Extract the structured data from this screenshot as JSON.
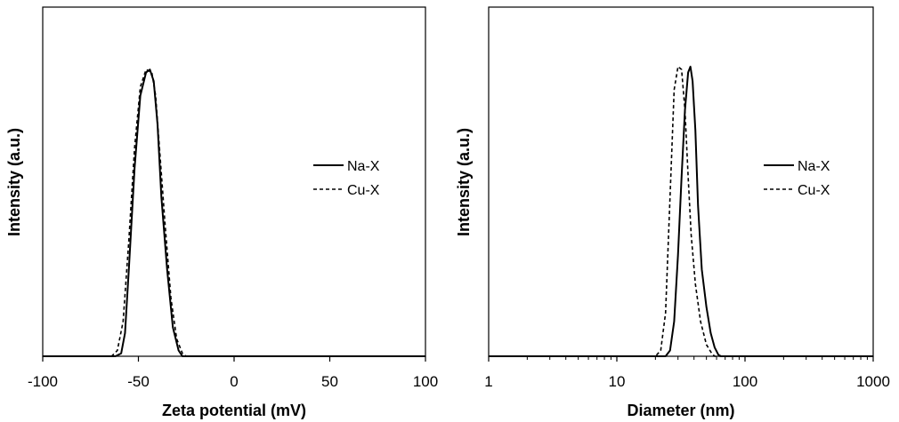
{
  "chart_data": [
    {
      "type": "line",
      "xlabel": "Zeta potential (mV)",
      "ylabel": "Intensity (a.u.)",
      "xlim": [
        -100,
        100
      ],
      "xscale": "linear",
      "xticks": [
        -100,
        -50,
        0,
        50,
        100
      ],
      "xtick_labels": [
        "-100",
        "-50",
        "0",
        "50",
        "100"
      ],
      "yticks_shown": false,
      "grid": false,
      "legend_position": "right",
      "series": [
        {
          "name": "Na-X",
          "style": "solid",
          "color": "#000000",
          "points": [
            [
              -100,
              0
            ],
            [
              -62,
              0
            ],
            [
              -59,
              0.01
            ],
            [
              -57,
              0.08
            ],
            [
              -55,
              0.3
            ],
            [
              -52,
              0.65
            ],
            [
              -49,
              0.9
            ],
            [
              -46,
              0.98
            ],
            [
              -44,
              0.99
            ],
            [
              -42,
              0.95
            ],
            [
              -40,
              0.8
            ],
            [
              -38,
              0.55
            ],
            [
              -35,
              0.3
            ],
            [
              -32,
              0.1
            ],
            [
              -29,
              0.02
            ],
            [
              -27,
              0
            ],
            [
              100,
              0
            ]
          ]
        },
        {
          "name": "Cu-X",
          "style": "dashed",
          "color": "#000000",
          "points": [
            [
              -100,
              0
            ],
            [
              -64,
              0
            ],
            [
              -61,
              0.02
            ],
            [
              -58,
              0.12
            ],
            [
              -55,
              0.4
            ],
            [
              -52,
              0.72
            ],
            [
              -49,
              0.93
            ],
            [
              -46,
              0.99
            ],
            [
              -43,
              0.98
            ],
            [
              -41,
              0.9
            ],
            [
              -39,
              0.72
            ],
            [
              -36,
              0.45
            ],
            [
              -33,
              0.2
            ],
            [
              -30,
              0.06
            ],
            [
              -27,
              0.01
            ],
            [
              -25,
              0
            ],
            [
              100,
              0
            ]
          ]
        }
      ]
    },
    {
      "type": "line",
      "xlabel": "Diameter (nm)",
      "ylabel": "Intensity (a.u.)",
      "xlim": [
        1,
        1000
      ],
      "xscale": "log",
      "xticks": [
        1,
        10,
        100,
        1000
      ],
      "xtick_labels": [
        "1",
        "10",
        "100",
        "1000"
      ],
      "yticks_shown": false,
      "grid": false,
      "legend_position": "right",
      "series": [
        {
          "name": "Na-X",
          "style": "solid",
          "color": "#000000",
          "points": [
            [
              1,
              0
            ],
            [
              24,
              0
            ],
            [
              26,
              0.02
            ],
            [
              28,
              0.12
            ],
            [
              30,
              0.35
            ],
            [
              32,
              0.62
            ],
            [
              34,
              0.85
            ],
            [
              36,
              0.98
            ],
            [
              37.5,
              1.0
            ],
            [
              39,
              0.95
            ],
            [
              41,
              0.78
            ],
            [
              43,
              0.52
            ],
            [
              46,
              0.3
            ],
            [
              50,
              0.17
            ],
            [
              54,
              0.08
            ],
            [
              58,
              0.03
            ],
            [
              62,
              0.005
            ],
            [
              65,
              0
            ],
            [
              1000,
              0
            ]
          ]
        },
        {
          "name": "Cu-X",
          "style": "dashed",
          "color": "#000000",
          "points": [
            [
              1,
              0
            ],
            [
              20,
              0
            ],
            [
              22,
              0.02
            ],
            [
              24,
              0.15
            ],
            [
              26,
              0.55
            ],
            [
              28,
              0.92
            ],
            [
              30,
              1.0
            ],
            [
              32,
              0.99
            ],
            [
              34,
              0.85
            ],
            [
              36,
              0.62
            ],
            [
              38,
              0.42
            ],
            [
              41,
              0.25
            ],
            [
              45,
              0.12
            ],
            [
              50,
              0.04
            ],
            [
              55,
              0.01
            ],
            [
              58,
              0
            ],
            [
              1000,
              0
            ]
          ]
        }
      ]
    }
  ]
}
